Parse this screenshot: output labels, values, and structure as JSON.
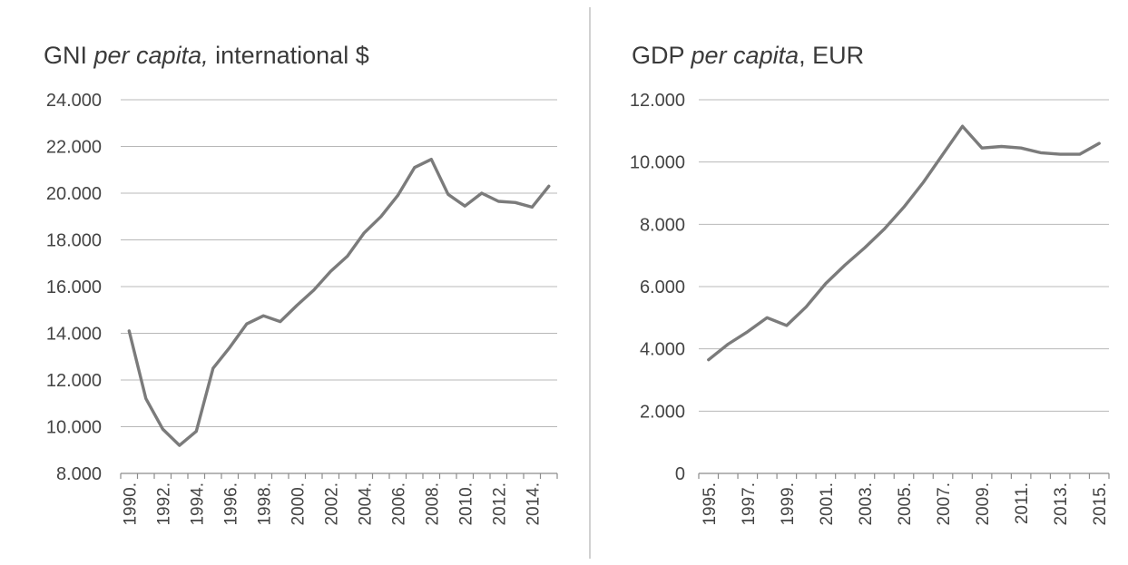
{
  "chart_data": [
    {
      "type": "line",
      "title_main": "GNI ",
      "title_italic": "per capita,",
      "title_tail": " international $",
      "x": [
        1990,
        1991,
        1992,
        1993,
        1994,
        1995,
        1996,
        1997,
        1998,
        1999,
        2000,
        2001,
        2002,
        2003,
        2004,
        2005,
        2006,
        2007,
        2008,
        2009,
        2010,
        2011,
        2012,
        2013,
        2014,
        2015
      ],
      "x_tick_labels": [
        "1990.",
        "1992.",
        "1994.",
        "1996.",
        "1998.",
        "2000.",
        "2002.",
        "2004.",
        "2006.",
        "2008.",
        "2010.",
        "2012.",
        "2014."
      ],
      "x_tick_years": [
        1990,
        1992,
        1994,
        1996,
        1998,
        2000,
        2002,
        2004,
        2006,
        2008,
        2010,
        2012,
        2014
      ],
      "series": [
        {
          "values": [
            14100,
            11200,
            9900,
            9200,
            9800,
            12500,
            13400,
            14400,
            14750,
            14500,
            15200,
            15850,
            16650,
            17300,
            18300,
            19000,
            19900,
            21100,
            21450,
            19950,
            19450,
            20000,
            19650,
            19600,
            19400,
            20300
          ]
        }
      ],
      "ylim": [
        8000,
        24000
      ],
      "y_ticks": [
        8000,
        10000,
        12000,
        14000,
        16000,
        18000,
        20000,
        22000,
        24000
      ],
      "y_tick_labels": [
        "8.000",
        "10.000",
        "12.000",
        "14.000",
        "16.000",
        "18.000",
        "20.000",
        "22.000",
        "24.000"
      ],
      "grid": true,
      "legend": "none"
    },
    {
      "type": "line",
      "title_main": "GDP ",
      "title_italic": "per capita",
      "title_tail": ", EUR",
      "x": [
        1995,
        1996,
        1997,
        1998,
        1999,
        2000,
        2001,
        2002,
        2003,
        2004,
        2005,
        2006,
        2007,
        2008,
        2009,
        2010,
        2011,
        2012,
        2013,
        2014,
        2015
      ],
      "x_tick_labels": [
        "1995.",
        "1997.",
        "1999.",
        "2001.",
        "2003.",
        "2005.",
        "2007.",
        "2009.",
        "2011.",
        "2013.",
        "2015."
      ],
      "x_tick_years": [
        1995,
        1997,
        1999,
        2001,
        2003,
        2005,
        2007,
        2009,
        2011,
        2013,
        2015
      ],
      "series": [
        {
          "values": [
            3650,
            4150,
            4550,
            5000,
            4750,
            5350,
            6100,
            6700,
            7250,
            7850,
            8550,
            9350,
            10250,
            11150,
            10450,
            10500,
            10450,
            10300,
            10250,
            10250,
            10600
          ]
        }
      ],
      "ylim": [
        0,
        12000
      ],
      "y_ticks": [
        0,
        2000,
        4000,
        6000,
        8000,
        10000,
        12000
      ],
      "y_tick_labels": [
        "0",
        "2.000",
        "4.000",
        "6.000",
        "8.000",
        "10.000",
        "12.000"
      ],
      "grid": true,
      "legend": "none"
    }
  ]
}
